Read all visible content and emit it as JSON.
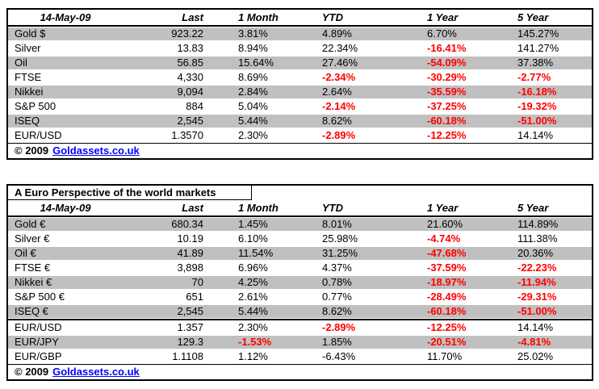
{
  "colors": {
    "negative_text": "#ff0000",
    "shaded_row": "#c0c0c0",
    "link_blue": "#0000ff",
    "border": "#000000"
  },
  "usd_table": {
    "date_header": "14-May-09",
    "columns": [
      "Last",
      "1 Month",
      "YTD",
      "1 Year",
      "5 Year"
    ],
    "rows": [
      {
        "label": "Gold $",
        "cells": [
          {
            "text": "923.22",
            "negative": false
          },
          {
            "text": "3.81%",
            "negative": false
          },
          {
            "text": "4.89%",
            "negative": false
          },
          {
            "text": "6.70%",
            "negative": false
          },
          {
            "text": "145.27%",
            "negative": false
          }
        ]
      },
      {
        "label": "Silver",
        "cells": [
          {
            "text": "13.83",
            "negative": false
          },
          {
            "text": "8.94%",
            "negative": false
          },
          {
            "text": "22.34%",
            "negative": false
          },
          {
            "text": "-16.41%",
            "negative": true
          },
          {
            "text": "141.27%",
            "negative": false
          }
        ]
      },
      {
        "label": "Oil",
        "cells": [
          {
            "text": "56.85",
            "negative": false
          },
          {
            "text": "15.64%",
            "negative": false
          },
          {
            "text": "27.46%",
            "negative": false
          },
          {
            "text": "-54.09%",
            "negative": true
          },
          {
            "text": "37.38%",
            "negative": false
          }
        ]
      },
      {
        "label": "FTSE",
        "cells": [
          {
            "text": "4,330",
            "negative": false
          },
          {
            "text": "8.69%",
            "negative": false
          },
          {
            "text": "-2.34%",
            "negative": true
          },
          {
            "text": "-30.29%",
            "negative": true
          },
          {
            "text": "-2.77%",
            "negative": true
          }
        ]
      },
      {
        "label": "Nikkei",
        "cells": [
          {
            "text": "9,094",
            "negative": false
          },
          {
            "text": "2.84%",
            "negative": false
          },
          {
            "text": "2.64%",
            "negative": false
          },
          {
            "text": "-35.59%",
            "negative": true
          },
          {
            "text": "-16.18%",
            "negative": true
          }
        ]
      },
      {
        "label": "S&P 500",
        "cells": [
          {
            "text": "884",
            "negative": false
          },
          {
            "text": "5.04%",
            "negative": false
          },
          {
            "text": "-2.14%",
            "negative": true
          },
          {
            "text": "-37.25%",
            "negative": true
          },
          {
            "text": "-19.32%",
            "negative": true
          }
        ]
      },
      {
        "label": "ISEQ",
        "cells": [
          {
            "text": "2,545",
            "negative": false
          },
          {
            "text": "5.44%",
            "negative": false
          },
          {
            "text": "8.62%",
            "negative": false
          },
          {
            "text": "-60.18%",
            "negative": true
          },
          {
            "text": "-51.00%",
            "negative": true
          }
        ]
      },
      {
        "label": "EUR/USD",
        "cells": [
          {
            "text": "1.3570",
            "negative": false
          },
          {
            "text": "2.30%",
            "negative": false
          },
          {
            "text": "-2.89%",
            "negative": true
          },
          {
            "text": "-12.25%",
            "negative": true
          },
          {
            "text": "14.14%",
            "negative": false
          }
        ]
      }
    ],
    "footer": {
      "copyright": "© 2009",
      "link_text": "Goldassets.co.uk"
    }
  },
  "euro_table": {
    "title": "A Euro Perspective of the world markets",
    "date_header": "14-May-09",
    "columns": [
      "Last",
      "1 Month",
      "YTD",
      "1 Year",
      "5 Year"
    ],
    "rows_top": [
      {
        "label": "Gold €",
        "cells": [
          {
            "text": "680.34",
            "negative": false
          },
          {
            "text": "1.45%",
            "negative": false
          },
          {
            "text": "8.01%",
            "negative": false
          },
          {
            "text": "21.60%",
            "negative": false
          },
          {
            "text": "114.89%",
            "negative": false
          }
        ]
      },
      {
        "label": "Silver €",
        "cells": [
          {
            "text": "10.19",
            "negative": false
          },
          {
            "text": "6.10%",
            "negative": false
          },
          {
            "text": "25.98%",
            "negative": false
          },
          {
            "text": "-4.74%",
            "negative": true
          },
          {
            "text": "111.38%",
            "negative": false
          }
        ]
      },
      {
        "label": "Oil €",
        "cells": [
          {
            "text": "41.89",
            "negative": false
          },
          {
            "text": "11.54%",
            "negative": false
          },
          {
            "text": "31.25%",
            "negative": false
          },
          {
            "text": "-47.68%",
            "negative": true
          },
          {
            "text": "20.36%",
            "negative": false
          }
        ]
      },
      {
        "label": "FTSE €",
        "cells": [
          {
            "text": "3,898",
            "negative": false
          },
          {
            "text": "6.96%",
            "negative": false
          },
          {
            "text": "4.37%",
            "negative": false
          },
          {
            "text": "-37.59%",
            "negative": true
          },
          {
            "text": "-22.23%",
            "negative": true
          }
        ]
      },
      {
        "label": "Nikkei €",
        "cells": [
          {
            "text": "70",
            "negative": false
          },
          {
            "text": "4.25%",
            "negative": false
          },
          {
            "text": "0.78%",
            "negative": false
          },
          {
            "text": "-18.97%",
            "negative": true
          },
          {
            "text": "-11.94%",
            "negative": true
          }
        ]
      },
      {
        "label": "S&P 500 €",
        "cells": [
          {
            "text": "651",
            "negative": false
          },
          {
            "text": "2.61%",
            "negative": false
          },
          {
            "text": "0.77%",
            "negative": false
          },
          {
            "text": "-28.49%",
            "negative": true
          },
          {
            "text": "-29.31%",
            "negative": true
          }
        ]
      },
      {
        "label": "ISEQ €",
        "cells": [
          {
            "text": "2,545",
            "negative": false
          },
          {
            "text": "5.44%",
            "negative": false
          },
          {
            "text": "8.62%",
            "negative": false
          },
          {
            "text": "-60.18%",
            "negative": true
          },
          {
            "text": "-51.00%",
            "negative": true
          }
        ]
      }
    ],
    "rows_fx": [
      {
        "label": "EUR/USD",
        "cells": [
          {
            "text": "1.357",
            "negative": false
          },
          {
            "text": "2.30%",
            "negative": false
          },
          {
            "text": "-2.89%",
            "negative": true
          },
          {
            "text": "-12.25%",
            "negative": true
          },
          {
            "text": "14.14%",
            "negative": false
          }
        ]
      },
      {
        "label": "EUR/JPY",
        "cells": [
          {
            "text": "129.3",
            "negative": false
          },
          {
            "text": "-1.53%",
            "negative": true
          },
          {
            "text": "1.85%",
            "negative": false
          },
          {
            "text": "-20.51%",
            "negative": true
          },
          {
            "text": "-4.81%",
            "negative": true
          }
        ]
      },
      {
        "label": "EUR/GBP",
        "cells": [
          {
            "text": "1.1108",
            "negative": false
          },
          {
            "text": "1.12%",
            "negative": false
          },
          {
            "text": "-6.43%",
            "negative": false
          },
          {
            "text": "11.70%",
            "negative": false
          },
          {
            "text": "25.02%",
            "negative": false
          }
        ]
      }
    ],
    "footer": {
      "copyright": "© 2009",
      "link_text": "Goldassets.co.uk"
    }
  }
}
